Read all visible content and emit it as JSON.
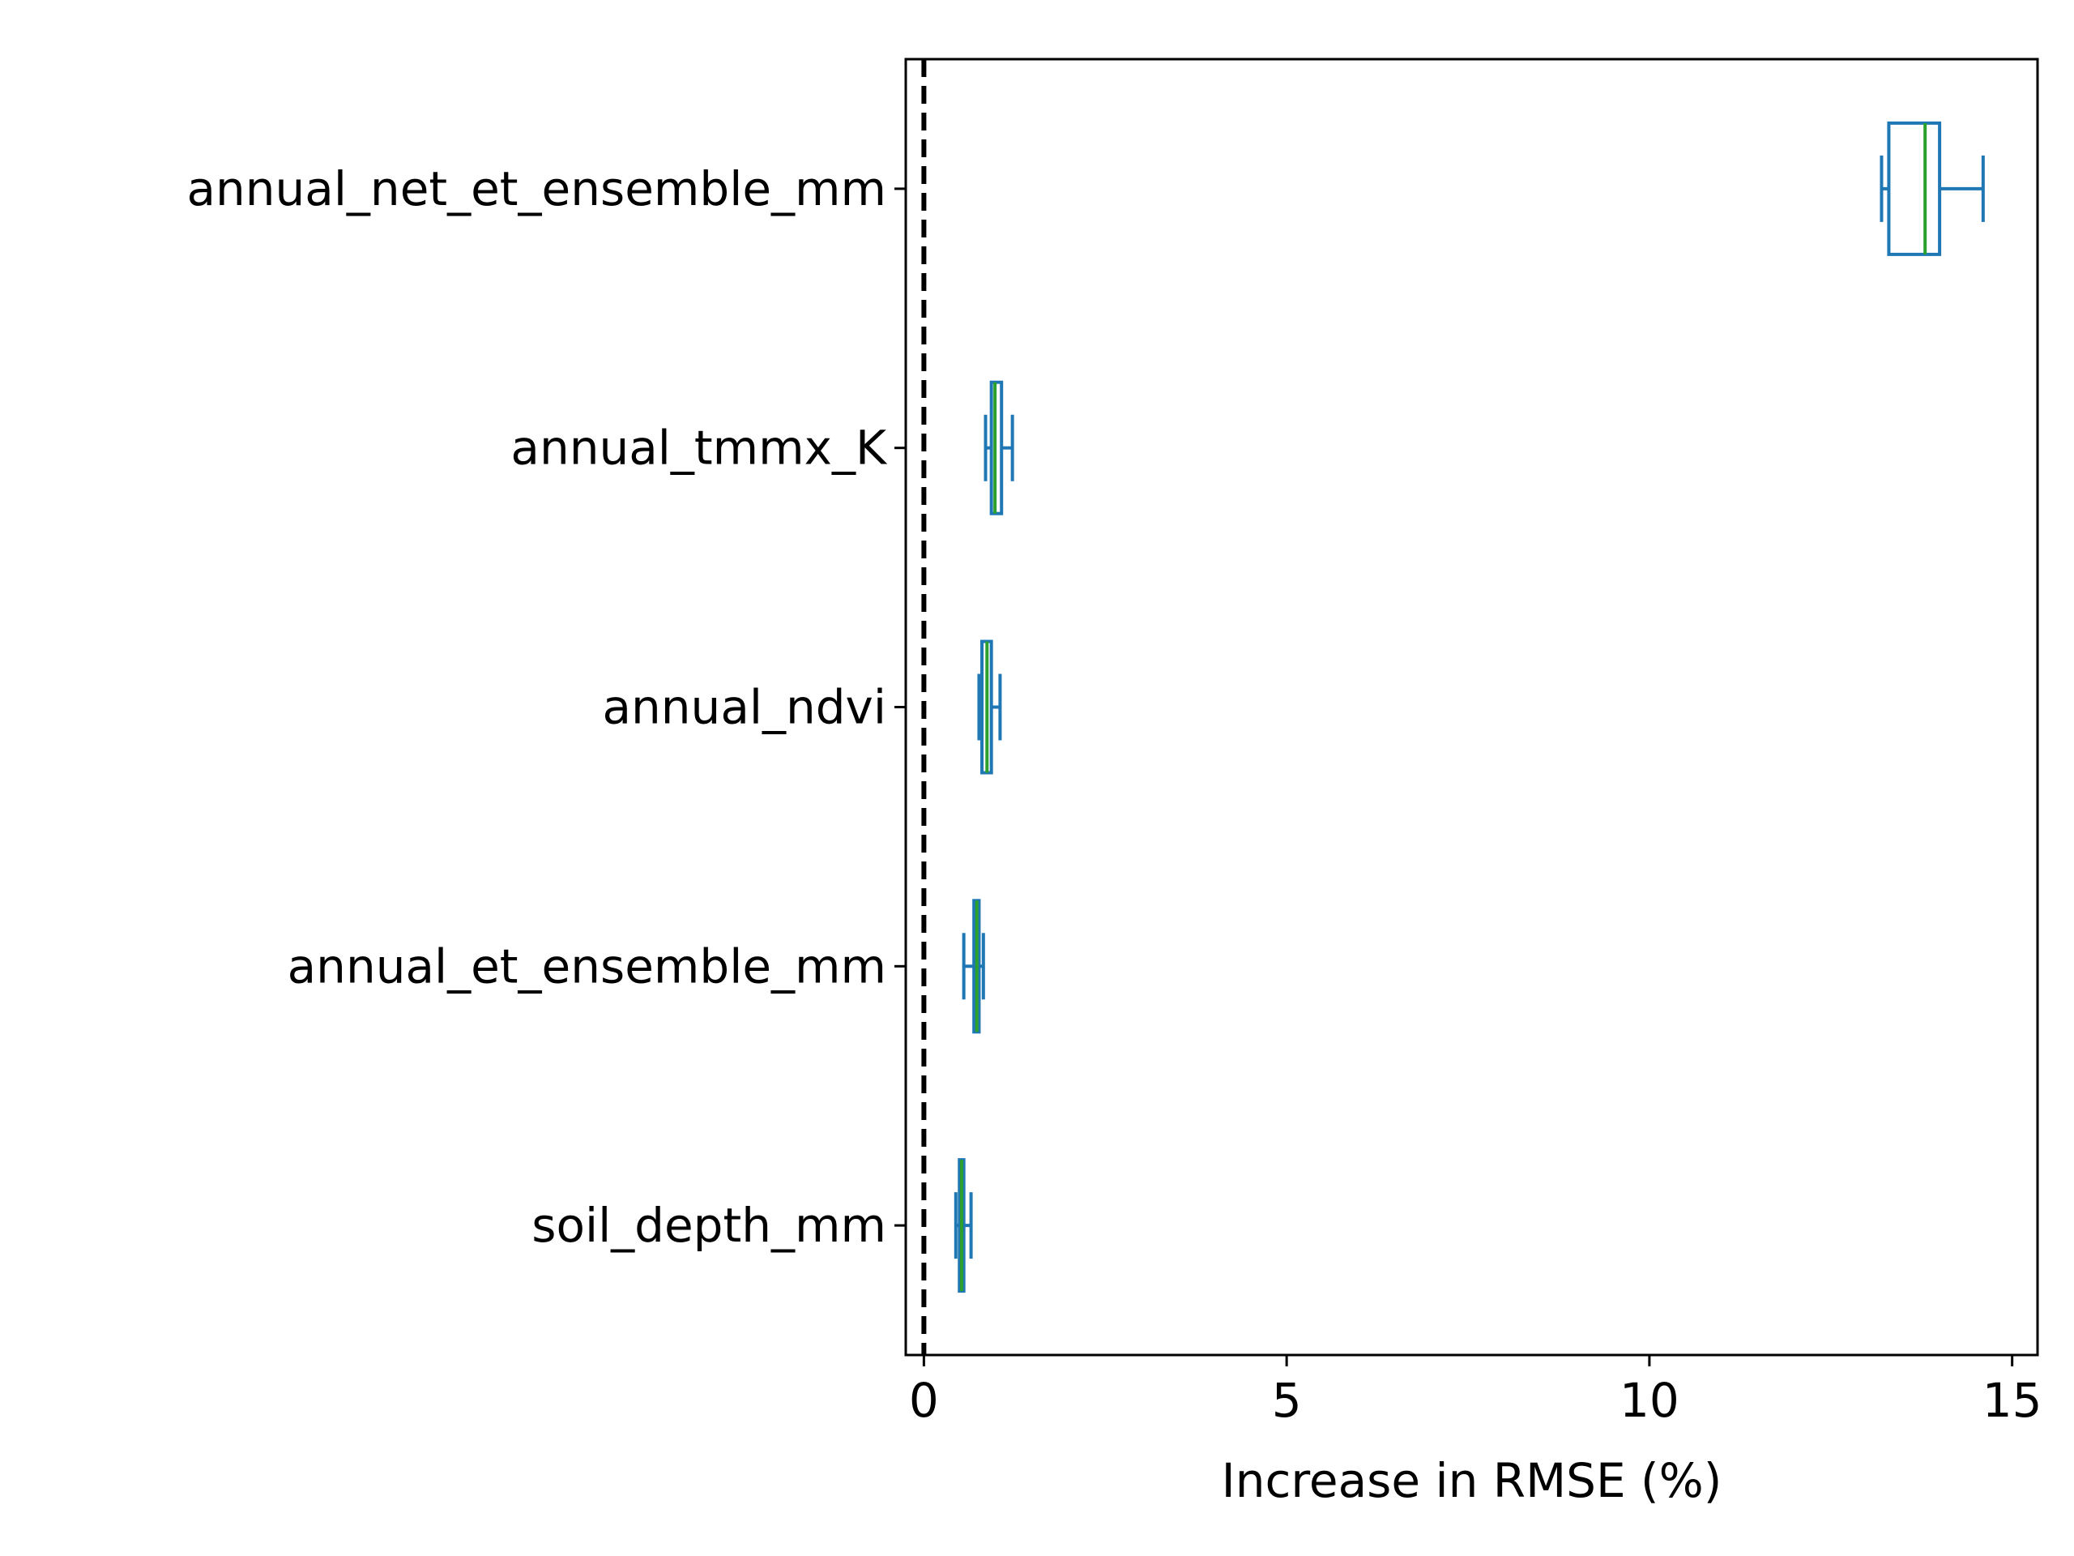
{
  "chart_data": {
    "type": "boxplot",
    "orientation": "horizontal",
    "title": "",
    "xlabel": "Increase in RMSE (%)",
    "ylabel": "",
    "xlim": [
      -0.25,
      15.35
    ],
    "xticks": [
      0,
      5,
      10,
      15
    ],
    "xtick_labels": [
      "0",
      "5",
      "10",
      "15"
    ],
    "grid": false,
    "reference_line": {
      "x": 0,
      "style": "dashed",
      "color": "#000000"
    },
    "colors": {
      "box": "#1f77b4",
      "median": "#2ca02c"
    },
    "categories": [
      "annual_net_et_ensemble_mm",
      "annual_tmmx_K",
      "annual_ndvi",
      "annual_et_ensemble_mm",
      "soil_depth_mm"
    ],
    "boxes": [
      {
        "label": "annual_net_et_ensemble_mm",
        "whislo": 13.2,
        "q1": 13.3,
        "med": 13.8,
        "q3": 14.0,
        "whishi": 14.6
      },
      {
        "label": "annual_tmmx_K",
        "whislo": 0.85,
        "q1": 0.93,
        "med": 0.98,
        "q3": 1.07,
        "whishi": 1.22
      },
      {
        "label": "annual_ndvi",
        "whislo": 0.76,
        "q1": 0.8,
        "med": 0.87,
        "q3": 0.93,
        "whishi": 1.05
      },
      {
        "label": "annual_et_ensemble_mm",
        "whislo": 0.55,
        "q1": 0.69,
        "med": 0.73,
        "q3": 0.76,
        "whishi": 0.82
      },
      {
        "label": "soil_depth_mm",
        "whislo": 0.44,
        "q1": 0.49,
        "med": 0.52,
        "q3": 0.55,
        "whishi": 0.65
      }
    ]
  }
}
